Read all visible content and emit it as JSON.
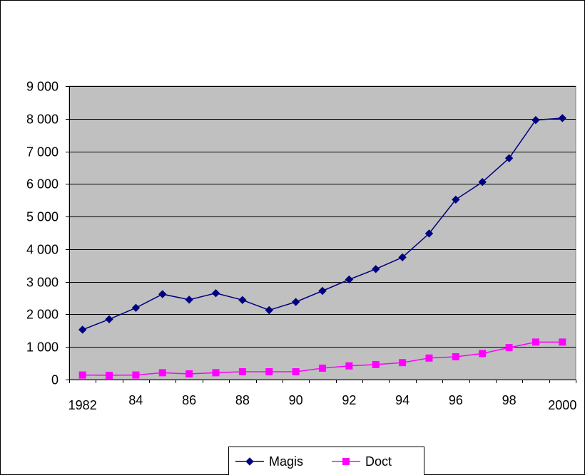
{
  "chart_data": {
    "type": "line",
    "title": "",
    "xlabel": "",
    "ylabel": "",
    "x": [
      1982,
      1983,
      1984,
      1985,
      1986,
      1987,
      1988,
      1989,
      1990,
      1991,
      1992,
      1993,
      1994,
      1995,
      1996,
      1997,
      1998,
      1999,
      2000
    ],
    "x_tick_labels": [
      {
        "x": 1982,
        "label": "1982"
      },
      {
        "x": 1984,
        "label": "84"
      },
      {
        "x": 1986,
        "label": "86"
      },
      {
        "x": 1988,
        "label": "88"
      },
      {
        "x": 1990,
        "label": "90"
      },
      {
        "x": 1992,
        "label": "92"
      },
      {
        "x": 1994,
        "label": "94"
      },
      {
        "x": 1996,
        "label": "96"
      },
      {
        "x": 1998,
        "label": "98"
      },
      {
        "x": 2000,
        "label": "2000"
      }
    ],
    "ylim": [
      0,
      9000
    ],
    "y_ticks": [
      0,
      1000,
      2000,
      3000,
      4000,
      5000,
      6000,
      7000,
      8000,
      9000
    ],
    "y_tick_labels": [
      "0",
      "1 000",
      "2 000",
      "3 000",
      "4 000",
      "5 000",
      "6 000",
      "7 000",
      "8 000",
      "9 000"
    ],
    "grid": true,
    "plot_background": "#c0c0c0",
    "legend_position": "bottom",
    "series": [
      {
        "name": "Magis",
        "color": "#000080",
        "marker": "diamond",
        "values": [
          1530,
          1850,
          2200,
          2620,
          2450,
          2650,
          2440,
          2130,
          2380,
          2720,
          3070,
          3390,
          3750,
          4480,
          5520,
          6060,
          6790,
          7960,
          8020
        ]
      },
      {
        "name": "Doct",
        "color": "#ff00ff",
        "marker": "square",
        "values": [
          140,
          130,
          140,
          210,
          175,
          210,
          240,
          240,
          240,
          350,
          420,
          460,
          520,
          660,
          700,
          800,
          980,
          1150,
          1150
        ]
      }
    ]
  }
}
